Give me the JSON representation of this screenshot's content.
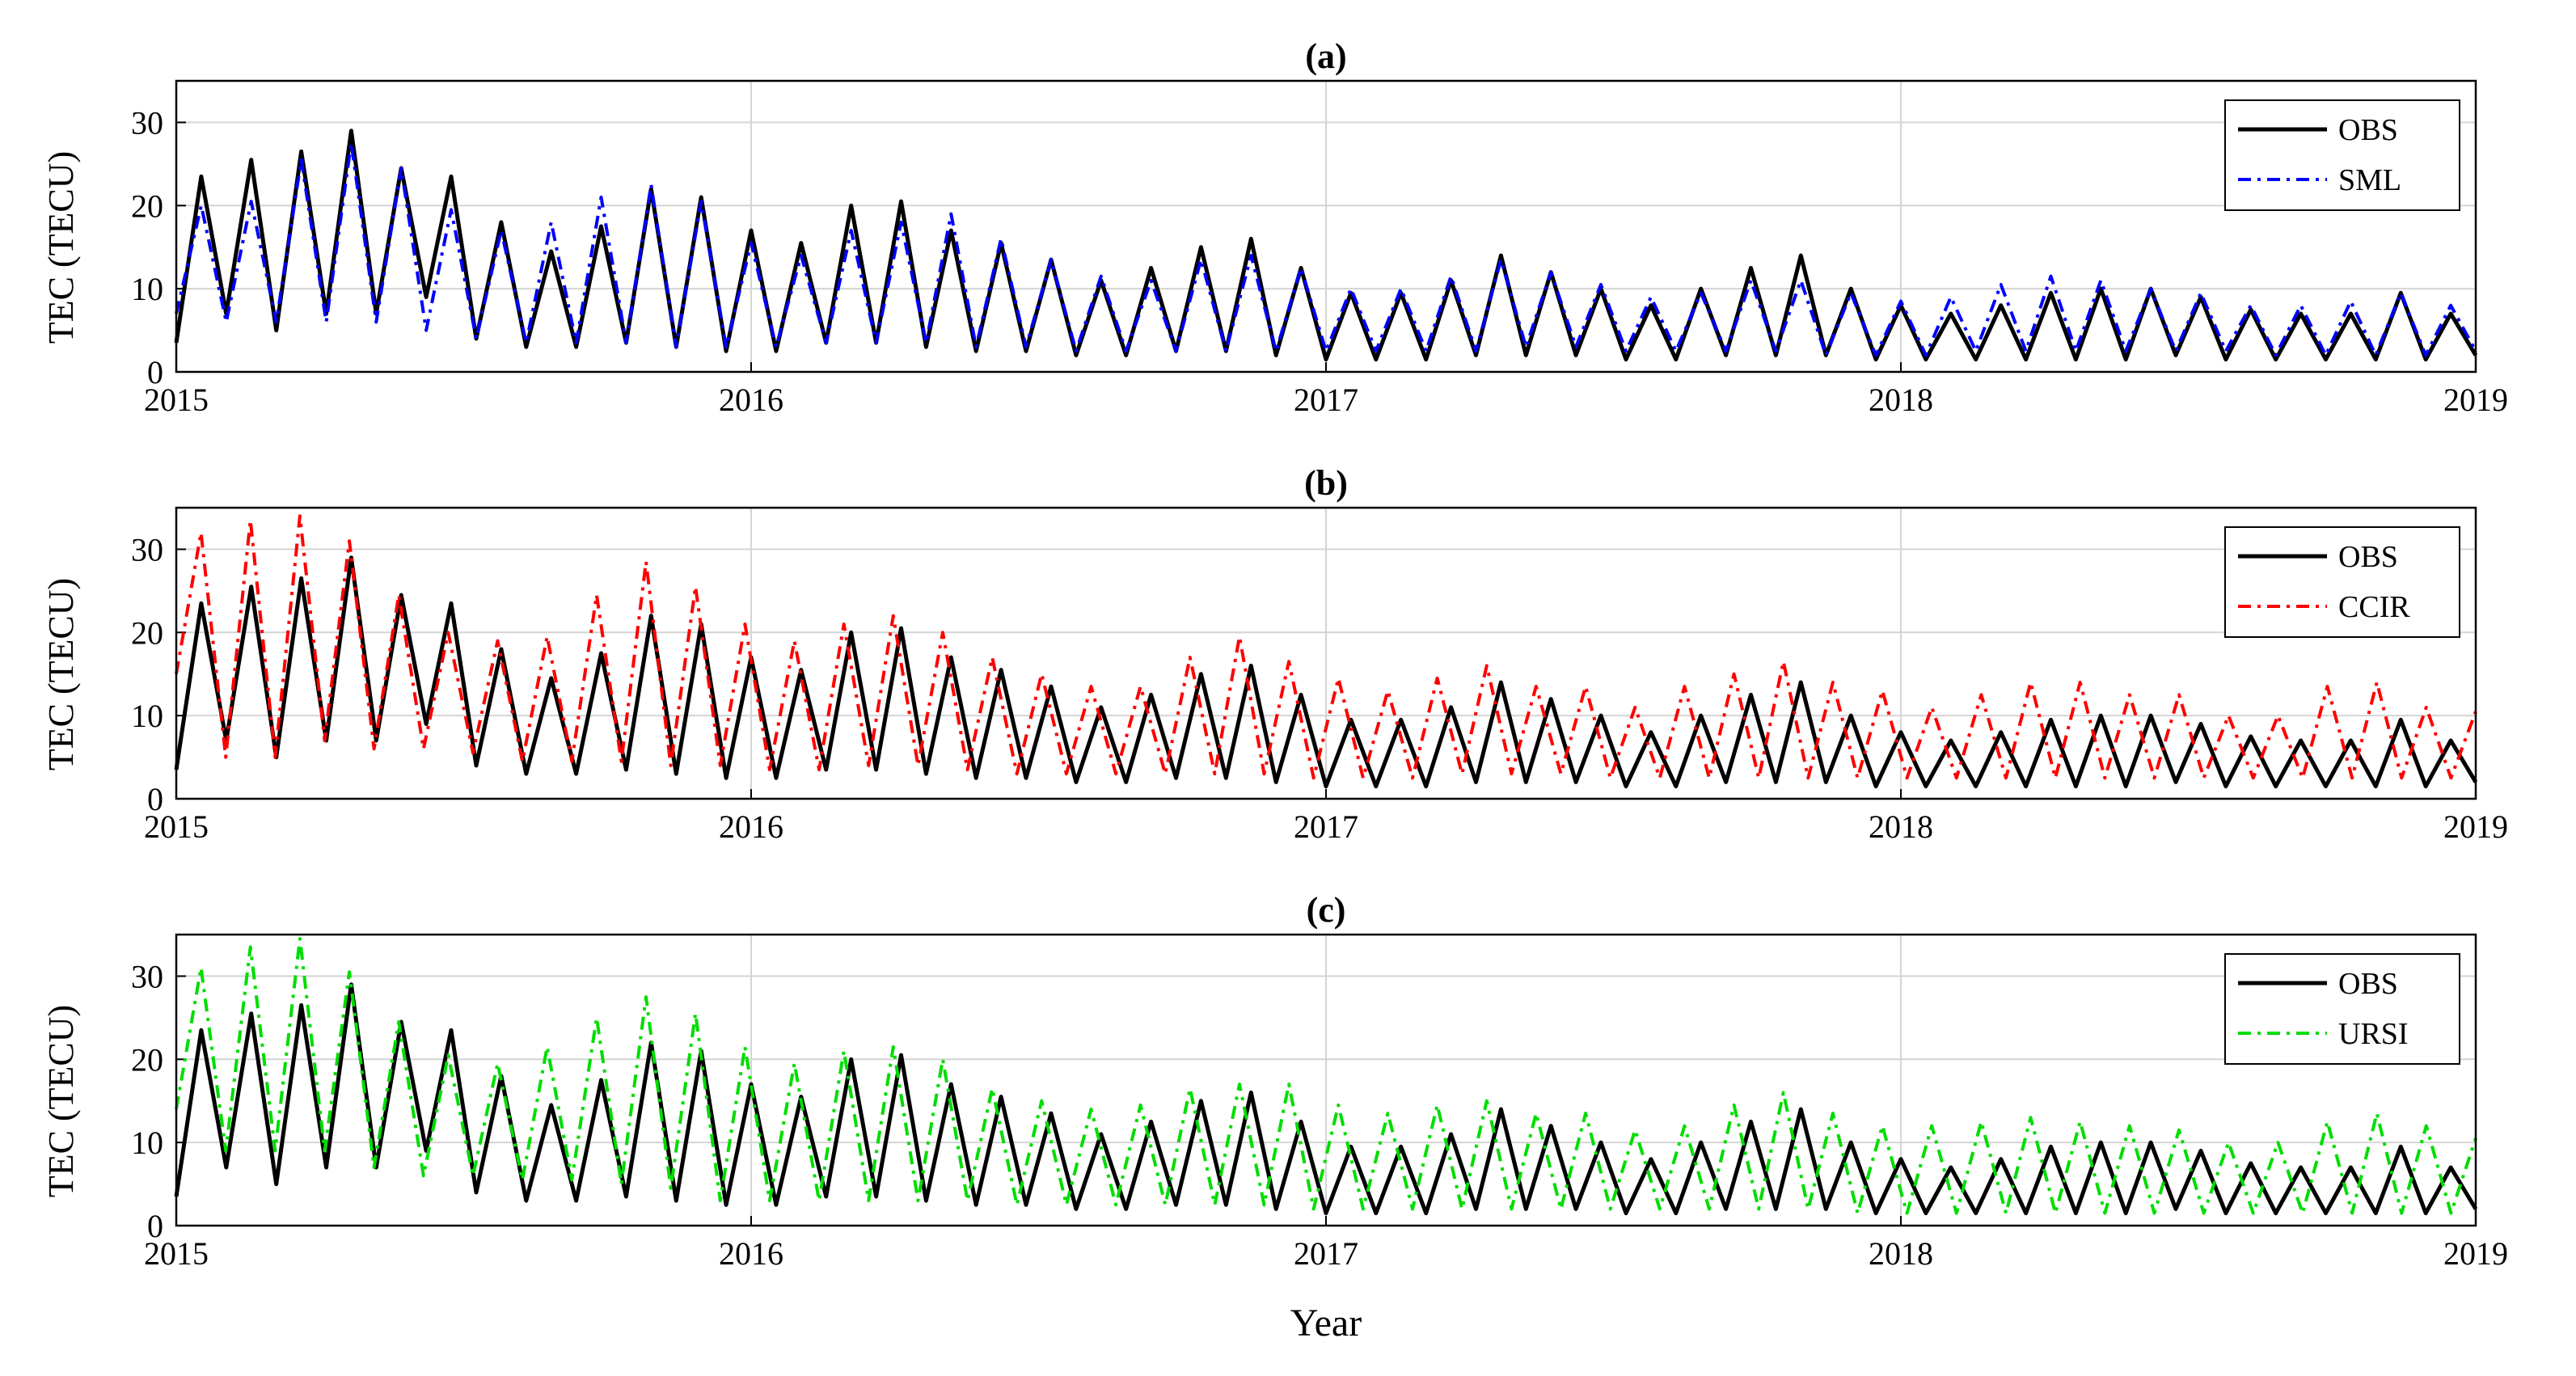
{
  "figure": {
    "xlabel": "Year"
  },
  "chart_data": [
    {
      "type": "line",
      "title": "(a)",
      "xlabel": "",
      "ylabel": "TEC (TECU)",
      "xlim": [
        2015,
        2019
      ],
      "ylim": [
        0,
        35
      ],
      "xticks": [
        2015,
        2016,
        2017,
        2018,
        2019
      ],
      "yticks": [
        0,
        10,
        20,
        30
      ],
      "grid": true,
      "legend_position": "top-right",
      "series": [
        {
          "name": "OBS",
          "color": "#000000",
          "dash": "solid",
          "values": [
            3.5,
            23.5,
            7,
            25.5,
            5,
            26.5,
            7,
            29,
            7,
            24.5,
            9,
            23.5,
            4,
            18,
            3,
            14.5,
            3,
            17.5,
            3.5,
            22,
            3,
            21,
            2.5,
            17,
            2.5,
            15.5,
            3.5,
            20,
            3.5,
            20.5,
            3,
            17,
            2.5,
            15.5,
            2.5,
            13.5,
            2,
            11,
            2,
            12.5,
            2.5,
            15,
            2.5,
            16,
            2,
            12.5,
            1.5,
            9.5,
            1.5,
            9.5,
            1.5,
            11,
            2,
            14,
            2,
            12,
            2,
            10,
            1.5,
            8,
            1.5,
            10,
            2,
            12.5,
            2,
            14,
            2,
            10,
            1.5,
            8,
            1.5,
            7,
            1.5,
            8,
            1.5,
            9.5,
            1.5,
            10,
            1.5,
            10,
            2,
            9,
            1.5,
            7.5,
            1.5,
            7,
            1.5,
            7,
            1.5,
            9.5,
            1.5,
            7,
            2
          ]
        },
        {
          "name": "SML",
          "color": "#0000ff",
          "dash": "dashdot",
          "values": [
            7,
            20,
            6,
            20.5,
            6,
            25.5,
            6,
            27.5,
            6,
            24.5,
            5,
            19.5,
            4,
            17,
            3.5,
            18,
            3.5,
            21,
            3.5,
            22.5,
            3,
            20.5,
            3,
            15.5,
            3,
            14,
            3.5,
            17,
            3.5,
            18,
            3.5,
            19,
            3,
            16,
            3,
            13.5,
            2.5,
            11.5,
            2.5,
            11,
            2.5,
            13.5,
            2.5,
            14,
            2.5,
            12.5,
            2.5,
            10,
            2.5,
            10,
            2.5,
            11.5,
            2.5,
            13.5,
            3,
            12,
            3,
            10.5,
            2.5,
            9,
            2.5,
            9.5,
            2.5,
            11,
            2.5,
            11,
            2,
            9.5,
            2,
            8.5,
            2,
            9,
            2.5,
            10.5,
            2.5,
            11.5,
            2.5,
            11,
            2.5,
            10,
            2.5,
            9.5,
            2.5,
            8,
            2,
            8,
            2,
            8.5,
            2,
            9.5,
            2,
            8,
            2.5
          ]
        }
      ]
    },
    {
      "type": "line",
      "title": "(b)",
      "xlabel": "",
      "ylabel": "TEC (TECU)",
      "xlim": [
        2015,
        2019
      ],
      "ylim": [
        0,
        35
      ],
      "xticks": [
        2015,
        2016,
        2017,
        2018,
        2019
      ],
      "yticks": [
        0,
        10,
        20,
        30
      ],
      "grid": true,
      "legend_position": "top-right",
      "series": [
        {
          "name": "OBS",
          "color": "#000000",
          "dash": "solid",
          "values": [
            3.5,
            23.5,
            7,
            25.5,
            5,
            26.5,
            7,
            29,
            7,
            24.5,
            9,
            23.5,
            4,
            18,
            3,
            14.5,
            3,
            17.5,
            3.5,
            22,
            3,
            21,
            2.5,
            17,
            2.5,
            15.5,
            3.5,
            20,
            3.5,
            20.5,
            3,
            17,
            2.5,
            15.5,
            2.5,
            13.5,
            2,
            11,
            2,
            12.5,
            2.5,
            15,
            2.5,
            16,
            2,
            12.5,
            1.5,
            9.5,
            1.5,
            9.5,
            1.5,
            11,
            2,
            14,
            2,
            12,
            2,
            10,
            1.5,
            8,
            1.5,
            10,
            2,
            12.5,
            2,
            14,
            2,
            10,
            1.5,
            8,
            1.5,
            7,
            1.5,
            8,
            1.5,
            9.5,
            1.5,
            10,
            1.5,
            10,
            2,
            9,
            1.5,
            7.5,
            1.5,
            7,
            1.5,
            7,
            1.5,
            9.5,
            1.5,
            7,
            2
          ]
        },
        {
          "name": "CCIR",
          "color": "#ff0000",
          "dash": "dashdot",
          "values": [
            15,
            32,
            5,
            33.5,
            5,
            34,
            7,
            31,
            6,
            24.5,
            6,
            20,
            5.5,
            19,
            4.5,
            19.5,
            4.5,
            24.5,
            4.5,
            28.5,
            4,
            25.5,
            4,
            21,
            3.5,
            19,
            3.5,
            21,
            4,
            22,
            4,
            20,
            3.5,
            17,
            3,
            15,
            3,
            13.5,
            3,
            13.5,
            3,
            17,
            3,
            19.5,
            3,
            16.5,
            2.5,
            14.5,
            2.5,
            13,
            2.5,
            14.5,
            3,
            16,
            3,
            13.5,
            3,
            13.5,
            2.5,
            11,
            2.5,
            13.5,
            2.5,
            15,
            2.5,
            16.5,
            2.5,
            14,
            2.5,
            13,
            2.5,
            11,
            2.5,
            12.5,
            2.5,
            14,
            2.5,
            14,
            2.5,
            12.5,
            2.5,
            12.5,
            2.5,
            10,
            2.5,
            10,
            2.5,
            13.5,
            2.5,
            14,
            2.5,
            11,
            2.5,
            10.5
          ]
        }
      ]
    },
    {
      "type": "line",
      "title": "(c)",
      "xlabel": "Year",
      "ylabel": "TEC (TECU)",
      "xlim": [
        2015,
        2019
      ],
      "ylim": [
        0,
        35
      ],
      "xticks": [
        2015,
        2016,
        2017,
        2018,
        2019
      ],
      "yticks": [
        0,
        10,
        20,
        30
      ],
      "grid": true,
      "legend_position": "top-right",
      "series": [
        {
          "name": "OBS",
          "color": "#000000",
          "dash": "solid",
          "values": [
            3.5,
            23.5,
            7,
            25.5,
            5,
            26.5,
            7,
            29,
            7,
            24.5,
            9,
            23.5,
            4,
            18,
            3,
            14.5,
            3,
            17.5,
            3.5,
            22,
            3,
            21,
            2.5,
            17,
            2.5,
            15.5,
            3.5,
            20,
            3.5,
            20.5,
            3,
            17,
            2.5,
            15.5,
            2.5,
            13.5,
            2,
            11,
            2,
            12.5,
            2.5,
            15,
            2.5,
            16,
            2,
            12.5,
            1.5,
            9.5,
            1.5,
            9.5,
            1.5,
            11,
            2,
            14,
            2,
            12,
            2,
            10,
            1.5,
            8,
            1.5,
            10,
            2,
            12.5,
            2,
            14,
            2,
            10,
            1.5,
            8,
            1.5,
            7,
            1.5,
            8,
            1.5,
            9.5,
            1.5,
            10,
            1.5,
            10,
            2,
            9,
            1.5,
            7.5,
            1.5,
            7,
            1.5,
            7,
            1.5,
            9.5,
            1.5,
            7,
            2
          ]
        },
        {
          "name": "URSI",
          "color": "#00dd00",
          "dash": "dashdot",
          "values": [
            14,
            31,
            9,
            33.5,
            9,
            34.5,
            9,
            30.5,
            7,
            24.5,
            6,
            20.5,
            6,
            19.5,
            5.5,
            21.5,
            5.5,
            25,
            5,
            27.5,
            4.5,
            25.5,
            3,
            21.5,
            3,
            19.5,
            3,
            21,
            3,
            21.5,
            3,
            20,
            3,
            16.5,
            2.5,
            15,
            2.5,
            14,
            2.5,
            14.5,
            2.5,
            16.5,
            2.5,
            17,
            2.5,
            17,
            2,
            14.5,
            2,
            13.5,
            2,
            14.5,
            2,
            15,
            2,
            13.5,
            2,
            13.5,
            2,
            11.5,
            2,
            12,
            2,
            14.5,
            2,
            16,
            2,
            13.5,
            1.5,
            12,
            1.5,
            12,
            1.5,
            12.5,
            1.5,
            13,
            1.5,
            12.5,
            1.5,
            12,
            1.5,
            11.5,
            1.5,
            10,
            1.5,
            10,
            1.5,
            12.5,
            1.5,
            13.5,
            1.5,
            12,
            1.5,
            10.5
          ]
        }
      ]
    }
  ]
}
